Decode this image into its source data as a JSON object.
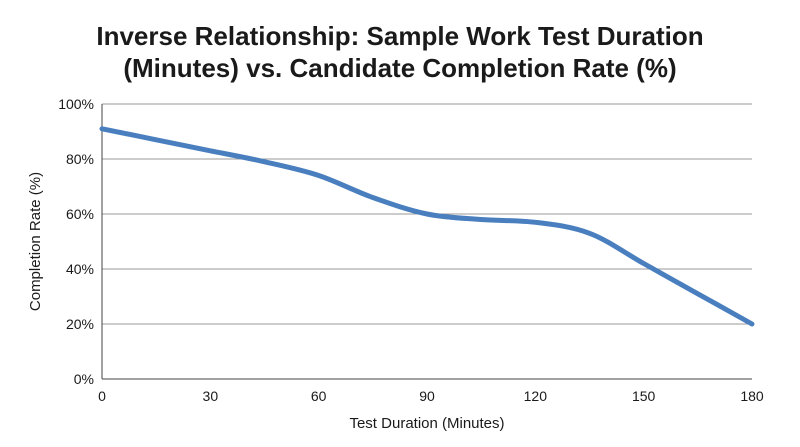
{
  "chart_data": {
    "type": "line",
    "title_lines": [
      "Inverse Relationship: Sample Work Test Duration",
      "(Minutes) vs. Candidate Completion Rate (%)"
    ],
    "xlabel": "Test Duration (Minutes)",
    "ylabel": "Completion Rate (%)",
    "xlim": [
      0,
      180
    ],
    "ylim": [
      0,
      100
    ],
    "x_ticks": [
      0,
      30,
      60,
      90,
      120,
      150,
      180
    ],
    "y_ticks": [
      0,
      20,
      40,
      60,
      80,
      100
    ],
    "y_tick_suffix": "%",
    "grid": "horizontal",
    "line_color": "#4a7fbf",
    "series": [
      {
        "x": [
          0,
          15,
          30,
          45,
          60,
          75,
          90,
          105,
          120,
          135,
          150,
          165,
          180
        ],
        "y": [
          91,
          87,
          83,
          79,
          74,
          66,
          60,
          58,
          57,
          53,
          42,
          31,
          20
        ]
      }
    ]
  }
}
